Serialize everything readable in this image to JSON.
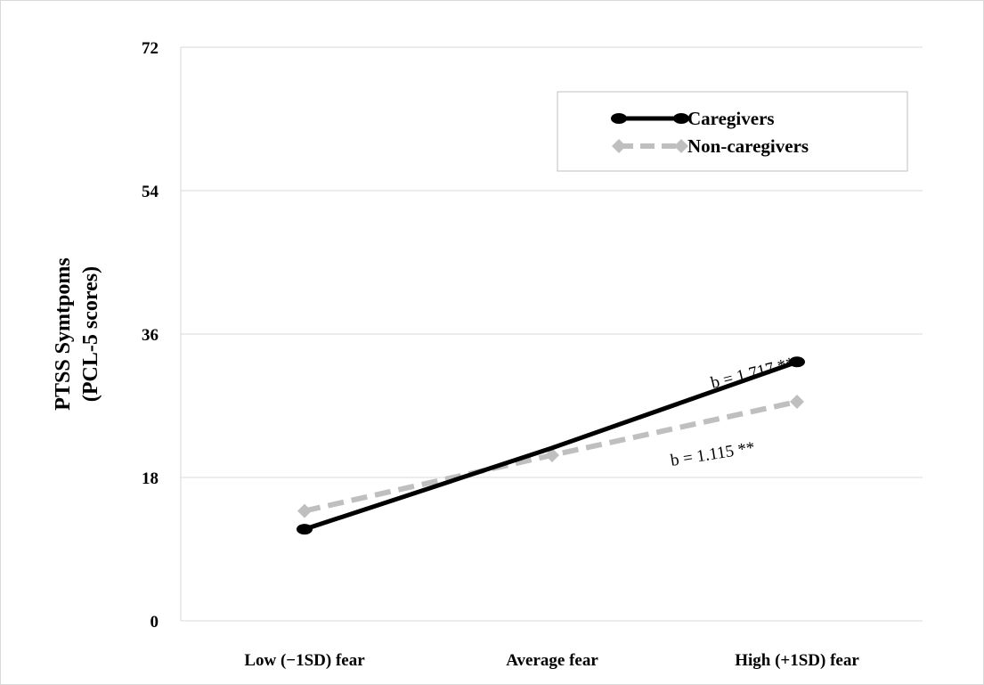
{
  "chart_data": {
    "type": "line",
    "title": "",
    "xlabel": "",
    "ylabel_lines": [
      "PTSS Symtpoms",
      "(PCL-5 scores)"
    ],
    "categories": [
      "Low (−1SD) fear",
      "Average fear",
      "High (+1SD) fear"
    ],
    "y_ticks": [
      "0",
      "18",
      "36",
      "54",
      "72"
    ],
    "ylim": [
      0,
      72
    ],
    "grid": true,
    "legend_position": "top-right",
    "series": [
      {
        "name": "Caregivers",
        "values": [
          11.5,
          21.7,
          32.5
        ],
        "color": "#000000",
        "line_style": "solid",
        "marker": "oval",
        "annotation": "b = 1.717 **"
      },
      {
        "name": "Non-caregivers",
        "values": [
          13.8,
          20.8,
          27.5
        ],
        "color": "#bfbfbf",
        "line_style": "dashed",
        "marker": "diamond",
        "annotation": "b = 1.115 **"
      }
    ]
  }
}
